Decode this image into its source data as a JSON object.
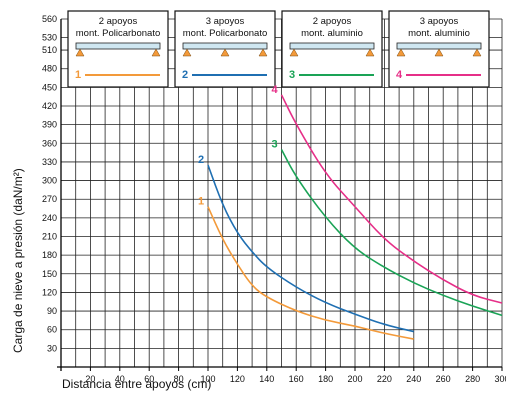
{
  "chart_data": {
    "type": "line",
    "xlabel": "Distancia entre apoyos (cm)",
    "ylabel": "Carga de nieve a presión  (daN/m²)",
    "xlim": [
      0,
      300
    ],
    "ylim": [
      0,
      560
    ],
    "xticks": [
      20,
      40,
      60,
      80,
      100,
      120,
      140,
      160,
      180,
      200,
      220,
      240,
      260,
      280,
      300
    ],
    "yticks": [
      30,
      60,
      90,
      120,
      150,
      180,
      210,
      240,
      270,
      300,
      330,
      360,
      390,
      420,
      450,
      480,
      510,
      530,
      560
    ],
    "grid": true,
    "series": [
      {
        "name": "1",
        "color": "#f39a3a",
        "points": [
          [
            100,
            258
          ],
          [
            110,
            205
          ],
          [
            120,
            165
          ],
          [
            130,
            130
          ],
          [
            140,
            112
          ],
          [
            160,
            90
          ],
          [
            180,
            75
          ],
          [
            200,
            66
          ],
          [
            220,
            54
          ],
          [
            240,
            45
          ]
        ]
      },
      {
        "name": "2",
        "color": "#1f6fb2",
        "points": [
          [
            100,
            325
          ],
          [
            110,
            260
          ],
          [
            120,
            215
          ],
          [
            130,
            185
          ],
          [
            140,
            160
          ],
          [
            160,
            128
          ],
          [
            180,
            103
          ],
          [
            200,
            85
          ],
          [
            220,
            68
          ],
          [
            240,
            57
          ]
        ]
      },
      {
        "name": "3",
        "color": "#1aa356",
        "points": [
          [
            150,
            350
          ],
          [
            160,
            305
          ],
          [
            180,
            240
          ],
          [
            200,
            190
          ],
          [
            220,
            160
          ],
          [
            240,
            135
          ],
          [
            260,
            115
          ],
          [
            280,
            98
          ],
          [
            300,
            83
          ]
        ]
      },
      {
        "name": "4",
        "color": "#e62f88",
        "points": [
          [
            150,
            438
          ],
          [
            160,
            390
          ],
          [
            180,
            310
          ],
          [
            200,
            258
          ],
          [
            220,
            205
          ],
          [
            240,
            170
          ],
          [
            260,
            140
          ],
          [
            280,
            115
          ],
          [
            300,
            103
          ]
        ]
      }
    ],
    "legend": [
      {
        "line1": "2 apoyos",
        "line2": "mont. Policarbonato",
        "number": "1",
        "supports": 2,
        "color": "#f39a3a"
      },
      {
        "line1": "3 apoyos",
        "line2": "mont. Policarbonato",
        "number": "2",
        "supports": 3,
        "color": "#1f6fb2"
      },
      {
        "line1": "2 apoyos",
        "line2": "mont. aluminio",
        "number": "3",
        "supports": 2,
        "color": "#1aa356"
      },
      {
        "line1": "3 apoyos",
        "line2": "mont. aluminio",
        "number": "4",
        "supports": 3,
        "color": "#e62f88"
      }
    ]
  }
}
